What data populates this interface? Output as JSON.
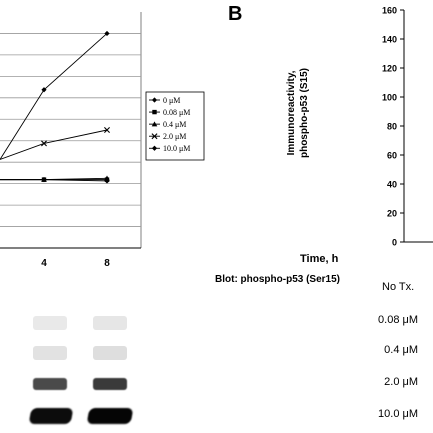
{
  "panel_b_label": "B",
  "panel_b_y_axis_label_line1": "Immunoreactivity,",
  "panel_b_y_axis_label_line2": "phospho-p53 (S15)",
  "panel_b_x_axis_label": "Time, h",
  "blot_title": "Blot: phospho-p53 (Ser15)",
  "no_tx_label": "No Tx.",
  "dose_labels": [
    "0.08 μM",
    "0.4 μM",
    "2.0 μM",
    "10.0 μM"
  ],
  "chart_data": [
    {
      "type": "line",
      "title": "",
      "xlabel": "",
      "ylabel": "",
      "categories": [
        "4",
        "8"
      ],
      "legend": [
        "0 μM",
        "0.08 μM",
        "0.4 μM",
        "2.0 μM",
        "10.0 μM"
      ],
      "legend_position": "right",
      "grid": true,
      "series": [
        {
          "name": "10.0 μM",
          "points": [
            {
              "x": "4",
              "y": 118
            },
            {
              "x": "8",
              "y": 160
            }
          ]
        },
        {
          "name": "2.0 μM",
          "points": [
            {
              "x": "4",
              "y": 78
            },
            {
              "x": "8",
              "y": 88
            }
          ]
        },
        {
          "name": "0.08 μM",
          "points": [
            {
              "x": "4",
              "y": 51
            },
            {
              "x": "8",
              "y": 51
            }
          ]
        },
        {
          "name": "0.4 μM",
          "points": [
            {
              "x": "4",
              "y": 51
            },
            {
              "x": "8",
              "y": 52
            }
          ]
        },
        {
          "name": "0 μM",
          "points": [
            {
              "x": "4",
              "y": 51
            },
            {
              "x": "8",
              "y": 50
            }
          ]
        }
      ]
    },
    {
      "type": "line",
      "title": "",
      "ylabel": "Immunoreactivity, phospho-p53 (S15)",
      "xlabel": "Time, h",
      "yticks": [
        0,
        20,
        40,
        60,
        80,
        100,
        120,
        140,
        160
      ],
      "ylim": [
        0,
        160
      ],
      "series": []
    }
  ]
}
